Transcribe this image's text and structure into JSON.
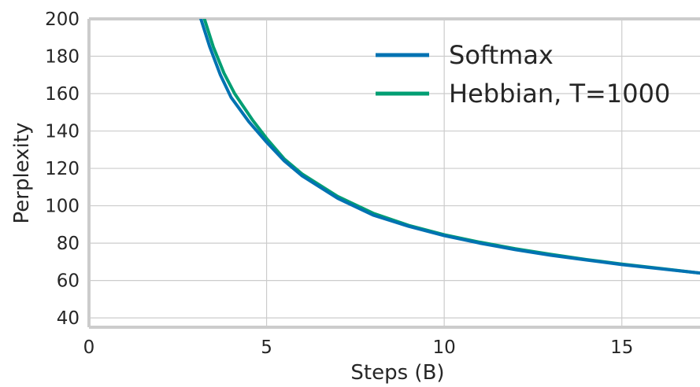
{
  "chart_data": {
    "type": "line",
    "xlabel": "Steps (B)",
    "ylabel": "Perplexity",
    "xlim": [
      0,
      17.2
    ],
    "ylim": [
      35,
      200
    ],
    "xticks": [
      0,
      5,
      10,
      15
    ],
    "yticks": [
      40,
      60,
      80,
      100,
      120,
      140,
      160,
      180,
      200
    ],
    "grid": true,
    "legend_position": "top-right",
    "series": [
      {
        "name": "Softmax",
        "color": "#0072B2",
        "x": [
          3.15,
          3.4,
          3.7,
          4.0,
          4.5,
          5.0,
          5.5,
          6.0,
          7.0,
          8.0,
          9.0,
          10.0,
          11.0,
          12.0,
          13.0,
          14.0,
          15.0,
          16.0,
          17.2
        ],
        "y": [
          200,
          185,
          170,
          158,
          145,
          134,
          124,
          116,
          104,
          95,
          89,
          84,
          80,
          76.5,
          73.5,
          71,
          68.5,
          66.5,
          64
        ]
      },
      {
        "name": "Hebbian, T=1000",
        "color": "#009E73",
        "x": [
          3.25,
          3.5,
          3.8,
          4.1,
          4.6,
          5.0,
          5.5,
          6.0,
          7.0,
          8.0,
          9.0,
          10.0,
          11.0,
          12.0,
          13.0,
          14.0,
          15.0,
          16.0,
          17.2
        ],
        "y": [
          200,
          185,
          171,
          160,
          146,
          136,
          125,
          117,
          105,
          96,
          89.5,
          84.5,
          80.5,
          77,
          74,
          71.2,
          68.8,
          66.6,
          64
        ]
      }
    ]
  }
}
